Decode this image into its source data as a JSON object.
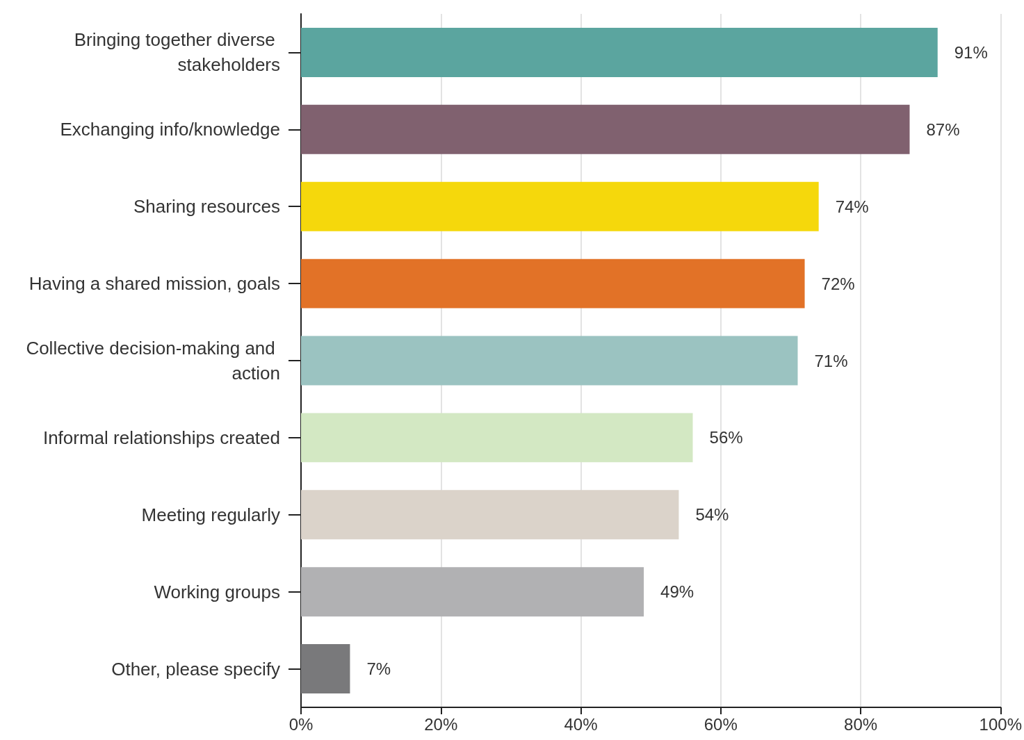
{
  "chart_data": {
    "type": "bar",
    "orientation": "horizontal",
    "categories": [
      "Bringing together diverse stakeholders",
      "Exchanging info/knowledge",
      "Sharing resources",
      "Having a shared mission, goals",
      "Collective decision-making and action",
      "Informal relationships created",
      "Meeting regularly",
      "Working groups",
      "Other, please specify"
    ],
    "values": [
      91,
      87,
      74,
      72,
      71,
      56,
      54,
      49,
      7
    ],
    "colors": [
      "#5ba59f",
      "#80616f",
      "#f5d80c",
      "#e27227",
      "#9bc3c1",
      "#d3e8c3",
      "#dbd3ca",
      "#b1b1b3",
      "#79797b"
    ],
    "value_labels": [
      "91%",
      "87%",
      "74%",
      "72%",
      "71%",
      "56%",
      "54%",
      "49%",
      "7%"
    ],
    "xlim": [
      0,
      100
    ],
    "xticks": [
      {
        "value": 0,
        "label": "0%"
      },
      {
        "value": 20,
        "label": "20%"
      },
      {
        "value": 40,
        "label": "40%"
      },
      {
        "value": 60,
        "label": "60%"
      },
      {
        "value": 80,
        "label": "80%"
      },
      {
        "value": 100,
        "label": "100%"
      }
    ],
    "grid": "x"
  }
}
